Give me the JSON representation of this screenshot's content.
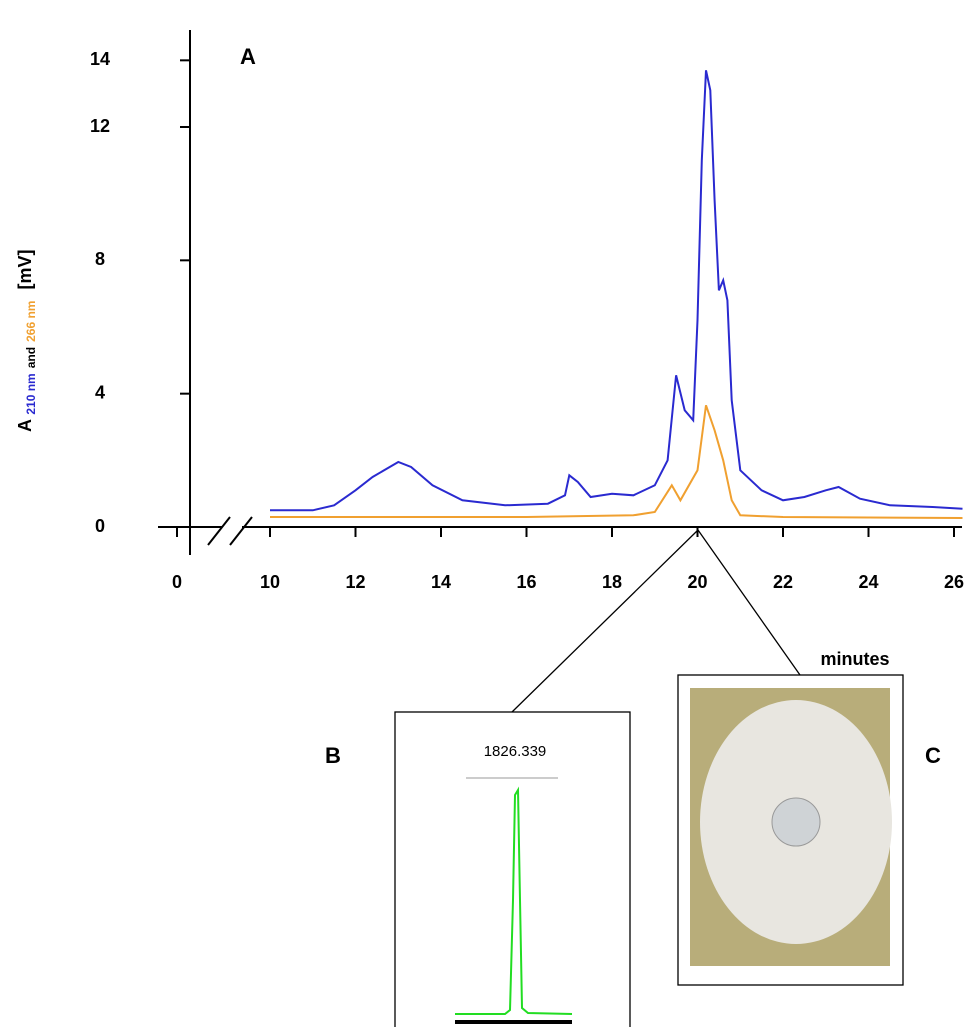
{
  "chart_data": {
    "type": "line",
    "panel_label": "A",
    "y_label": [
      "A",
      "and",
      "[mV]"
    ],
    "x_label": "minutes",
    "xlim": [
      0,
      26.2
    ],
    "xbreak": [
      0,
      10
    ],
    "xticks": [
      0,
      10,
      12,
      14,
      16,
      18,
      20,
      22,
      24,
      26
    ],
    "ylim": [
      0,
      15
    ],
    "yticks": [
      0,
      4,
      8,
      12,
      14
    ],
    "series": [
      {
        "name": "210 nm",
        "color": "#2a2ad0",
        "x": [
          10,
          11,
          11.5,
          12,
          12.4,
          12.8,
          13,
          13.3,
          13.8,
          14.5,
          15.5,
          16.5,
          16.9,
          17,
          17.2,
          17.5,
          18,
          18.5,
          19,
          19.3,
          19.5,
          19.7,
          19.9,
          20,
          20.1,
          20.2,
          20.3,
          20.4,
          20.5,
          20.6,
          20.7,
          20.8,
          21,
          21.5,
          22,
          22.5,
          23,
          23.3,
          23.8,
          24.5,
          25.5,
          26.2
        ],
        "values": [
          0.5,
          0.5,
          0.65,
          1.1,
          1.5,
          1.8,
          1.95,
          1.8,
          1.25,
          0.8,
          0.65,
          0.7,
          0.95,
          1.55,
          1.35,
          0.9,
          1.0,
          0.95,
          1.25,
          2.0,
          4.55,
          3.5,
          3.2,
          6.2,
          11.0,
          13.7,
          13.1,
          9.8,
          7.1,
          7.4,
          6.8,
          3.8,
          1.7,
          1.1,
          0.8,
          0.9,
          1.1,
          1.2,
          0.85,
          0.65,
          0.6,
          0.55
        ]
      },
      {
        "name": "266 nm",
        "color": "#f0a030",
        "x": [
          10,
          16,
          18.5,
          19,
          19.4,
          19.6,
          20,
          20.2,
          20.4,
          20.6,
          20.8,
          21,
          22,
          26.2
        ],
        "values": [
          0.3,
          0.3,
          0.35,
          0.45,
          1.25,
          0.8,
          1.7,
          3.65,
          2.9,
          2.0,
          0.8,
          0.35,
          0.3,
          0.27
        ]
      }
    ],
    "inset_b": {
      "label": "B",
      "peak_label": "1826.339"
    },
    "inset_c": {
      "label": "C"
    }
  }
}
